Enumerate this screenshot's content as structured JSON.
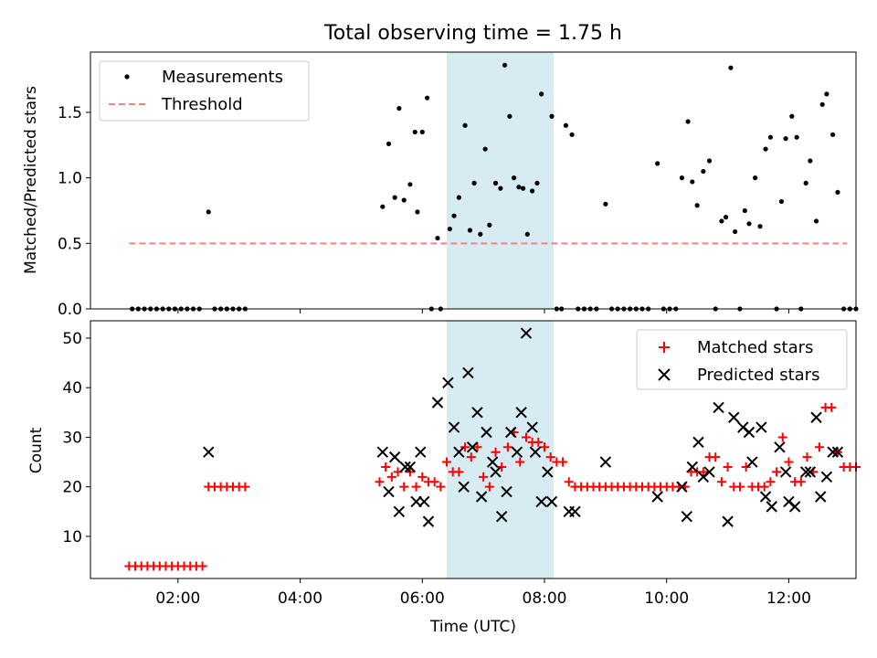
{
  "chart_data": [
    {
      "type": "scatter",
      "title": "Total observing time = 1.75 h",
      "xlabel": "",
      "ylabel": "Matched/Predicted stars",
      "x_unit": "hours UTC",
      "xlim": [
        "00:34",
        "13:06"
      ],
      "ylim": [
        0,
        1.96
      ],
      "yticks": [
        "0.0",
        "0.5",
        "1.0",
        "1.5"
      ],
      "highlight_band": {
        "from": "06:24",
        "to": "08:09"
      },
      "legend": {
        "location": "upper left",
        "entries": [
          "Measurements",
          "Threshold"
        ]
      },
      "series": [
        {
          "name": "Measurements",
          "marker": "dot",
          "color": "#000000",
          "points": [
            [
              1.25,
              0
            ],
            [
              1.35,
              0
            ],
            [
              1.45,
              0
            ],
            [
              1.55,
              0
            ],
            [
              1.65,
              0
            ],
            [
              1.75,
              0
            ],
            [
              1.85,
              0
            ],
            [
              1.95,
              0
            ],
            [
              2.05,
              0
            ],
            [
              2.15,
              0
            ],
            [
              2.25,
              0
            ],
            [
              2.35,
              0
            ],
            [
              2.5,
              0.74
            ],
            [
              2.6,
              0
            ],
            [
              2.7,
              0
            ],
            [
              2.8,
              0
            ],
            [
              2.9,
              0
            ],
            [
              3.0,
              0
            ],
            [
              3.1,
              0
            ],
            [
              5.35,
              0.78
            ],
            [
              5.45,
              1.26
            ],
            [
              5.55,
              0.85
            ],
            [
              5.62,
              1.53
            ],
            [
              5.7,
              0.83
            ],
            [
              5.8,
              0.95
            ],
            [
              5.88,
              1.35
            ],
            [
              5.92,
              0.74
            ],
            [
              6.0,
              1.35
            ],
            [
              6.08,
              1.61
            ],
            [
              6.15,
              0
            ],
            [
              6.25,
              0.54
            ],
            [
              6.3,
              0
            ],
            [
              6.45,
              0.61
            ],
            [
              6.52,
              0.71
            ],
            [
              6.6,
              0.85
            ],
            [
              6.7,
              1.4
            ],
            [
              6.78,
              0.6
            ],
            [
              6.85,
              0.96
            ],
            [
              6.95,
              0.57
            ],
            [
              7.03,
              1.22
            ],
            [
              7.1,
              0.64
            ],
            [
              7.2,
              0.96
            ],
            [
              7.28,
              0.92
            ],
            [
              7.35,
              1.86
            ],
            [
              7.43,
              1.47
            ],
            [
              7.5,
              1.0
            ],
            [
              7.58,
              0.93
            ],
            [
              7.65,
              0.92
            ],
            [
              7.72,
              0.57
            ],
            [
              7.8,
              0.9
            ],
            [
              7.88,
              0.96
            ],
            [
              7.95,
              1.64
            ],
            [
              8.12,
              1.47
            ],
            [
              8.2,
              0
            ],
            [
              8.28,
              0
            ],
            [
              8.35,
              1.4
            ],
            [
              8.45,
              1.33
            ],
            [
              8.55,
              0
            ],
            [
              8.65,
              0
            ],
            [
              8.75,
              0
            ],
            [
              8.85,
              0
            ],
            [
              9.0,
              0.8
            ],
            [
              9.1,
              0
            ],
            [
              9.2,
              0
            ],
            [
              9.3,
              0
            ],
            [
              9.4,
              0
            ],
            [
              9.5,
              0
            ],
            [
              9.6,
              0
            ],
            [
              9.7,
              0
            ],
            [
              9.85,
              1.11
            ],
            [
              9.95,
              0
            ],
            [
              10.05,
              0
            ],
            [
              10.15,
              0
            ],
            [
              10.25,
              1.0
            ],
            [
              10.35,
              1.43
            ],
            [
              10.42,
              0.97
            ],
            [
              10.5,
              0.79
            ],
            [
              10.6,
              1.05
            ],
            [
              10.7,
              1.13
            ],
            [
              10.8,
              0
            ],
            [
              10.9,
              0.67
            ],
            [
              10.97,
              0.7
            ],
            [
              11.05,
              1.84
            ],
            [
              11.12,
              0.59
            ],
            [
              11.2,
              0
            ],
            [
              11.28,
              0.75
            ],
            [
              11.35,
              0.65
            ],
            [
              11.45,
              1.0
            ],
            [
              11.53,
              0.63
            ],
            [
              11.62,
              1.22
            ],
            [
              11.7,
              1.31
            ],
            [
              11.8,
              0
            ],
            [
              11.88,
              0.82
            ],
            [
              11.95,
              1.3
            ],
            [
              12.05,
              1.47
            ],
            [
              12.13,
              1.31
            ],
            [
              12.2,
              0
            ],
            [
              12.28,
              0.96
            ],
            [
              12.35,
              1.13
            ],
            [
              12.45,
              0.67
            ],
            [
              12.55,
              1.56
            ],
            [
              12.62,
              1.64
            ],
            [
              12.72,
              1.33
            ],
            [
              12.8,
              0.89
            ],
            [
              12.9,
              0
            ],
            [
              13.0,
              0
            ],
            [
              13.1,
              0
            ]
          ]
        },
        {
          "name": "Threshold",
          "style": "dashed-line",
          "color": "#ff8080",
          "points": [
            [
              1.2,
              0.5
            ],
            [
              12.95,
              0.5
            ]
          ]
        }
      ]
    },
    {
      "type": "scatter",
      "title": "",
      "xlabel": "Time (UTC)",
      "ylabel": "Count",
      "x_unit": "hours UTC",
      "xlim": [
        "00:34",
        "13:06"
      ],
      "ylim": [
        1.5,
        53.5
      ],
      "xticks": [
        "02:00",
        "04:00",
        "06:00",
        "08:00",
        "10:00",
        "12:00"
      ],
      "yticks": [
        "10",
        "20",
        "30",
        "40",
        "50"
      ],
      "highlight_band": {
        "from": "06:24",
        "to": "08:09"
      },
      "legend": {
        "location": "upper right",
        "entries": [
          "Matched stars",
          "Predicted stars"
        ]
      },
      "series": [
        {
          "name": "Matched stars",
          "marker": "plus",
          "color": "#ff0000",
          "points": [
            [
              1.2,
              4
            ],
            [
              1.3,
              4
            ],
            [
              1.4,
              4
            ],
            [
              1.5,
              4
            ],
            [
              1.6,
              4
            ],
            [
              1.7,
              4
            ],
            [
              1.8,
              4
            ],
            [
              1.9,
              4
            ],
            [
              2.0,
              4
            ],
            [
              2.1,
              4
            ],
            [
              2.2,
              4
            ],
            [
              2.3,
              4
            ],
            [
              2.4,
              4
            ],
            [
              2.5,
              20
            ],
            [
              2.6,
              20
            ],
            [
              2.7,
              20
            ],
            [
              2.8,
              20
            ],
            [
              2.9,
              20
            ],
            [
              3.0,
              20
            ],
            [
              3.1,
              20
            ],
            [
              5.3,
              21
            ],
            [
              5.4,
              24
            ],
            [
              5.5,
              22
            ],
            [
              5.6,
              23
            ],
            [
              5.7,
              20
            ],
            [
              5.8,
              23
            ],
            [
              5.9,
              20
            ],
            [
              6.0,
              22
            ],
            [
              6.1,
              21
            ],
            [
              6.2,
              21
            ],
            [
              6.3,
              20
            ],
            [
              6.4,
              25
            ],
            [
              6.5,
              23
            ],
            [
              6.6,
              23
            ],
            [
              6.7,
              28
            ],
            [
              6.8,
              26
            ],
            [
              6.9,
              28
            ],
            [
              7.0,
              22
            ],
            [
              7.1,
              20
            ],
            [
              7.2,
              27
            ],
            [
              7.3,
              24
            ],
            [
              7.4,
              28
            ],
            [
              7.5,
              31
            ],
            [
              7.6,
              25
            ],
            [
              7.7,
              30
            ],
            [
              7.8,
              29
            ],
            [
              7.9,
              29
            ],
            [
              8.0,
              28
            ],
            [
              8.1,
              26
            ],
            [
              8.2,
              25
            ],
            [
              8.3,
              25
            ],
            [
              8.4,
              21
            ],
            [
              8.5,
              20
            ],
            [
              8.6,
              20
            ],
            [
              8.7,
              20
            ],
            [
              8.8,
              20
            ],
            [
              8.9,
              20
            ],
            [
              9.0,
              20
            ],
            [
              9.1,
              20
            ],
            [
              9.2,
              20
            ],
            [
              9.3,
              20
            ],
            [
              9.4,
              20
            ],
            [
              9.5,
              20
            ],
            [
              9.6,
              20
            ],
            [
              9.7,
              20
            ],
            [
              9.8,
              20
            ],
            [
              9.9,
              20
            ],
            [
              10.0,
              20
            ],
            [
              10.1,
              20
            ],
            [
              10.2,
              20
            ],
            [
              10.3,
              20
            ],
            [
              10.4,
              23
            ],
            [
              10.5,
              23
            ],
            [
              10.6,
              23
            ],
            [
              10.7,
              26
            ],
            [
              10.8,
              26
            ],
            [
              10.9,
              21
            ],
            [
              11.0,
              24
            ],
            [
              11.1,
              20
            ],
            [
              11.2,
              20
            ],
            [
              11.3,
              24
            ],
            [
              11.4,
              20
            ],
            [
              11.5,
              20
            ],
            [
              11.6,
              20
            ],
            [
              11.7,
              21
            ],
            [
              11.8,
              23
            ],
            [
              11.9,
              30
            ],
            [
              12.0,
              25
            ],
            [
              12.1,
              21
            ],
            [
              12.2,
              21
            ],
            [
              12.3,
              26
            ],
            [
              12.4,
              23
            ],
            [
              12.5,
              28
            ],
            [
              12.6,
              36
            ],
            [
              12.7,
              36
            ],
            [
              12.8,
              27
            ],
            [
              12.9,
              24
            ],
            [
              13.0,
              24
            ],
            [
              13.1,
              24
            ]
          ]
        },
        {
          "name": "Predicted stars",
          "marker": "x",
          "color": "#000000",
          "points": [
            [
              2.5,
              27
            ],
            [
              5.35,
              27
            ],
            [
              5.45,
              19
            ],
            [
              5.55,
              26
            ],
            [
              5.62,
              15
            ],
            [
              5.72,
              24
            ],
            [
              5.8,
              24
            ],
            [
              5.9,
              17
            ],
            [
              5.97,
              27
            ],
            [
              6.03,
              17
            ],
            [
              6.1,
              13
            ],
            [
              6.25,
              37
            ],
            [
              6.42,
              41
            ],
            [
              6.52,
              32
            ],
            [
              6.6,
              27
            ],
            [
              6.68,
              20
            ],
            [
              6.75,
              43
            ],
            [
              6.82,
              28
            ],
            [
              6.9,
              35
            ],
            [
              6.97,
              18
            ],
            [
              7.05,
              31
            ],
            [
              7.15,
              25
            ],
            [
              7.2,
              23
            ],
            [
              7.3,
              14
            ],
            [
              7.38,
              19
            ],
            [
              7.45,
              31
            ],
            [
              7.55,
              27
            ],
            [
              7.62,
              35
            ],
            [
              7.7,
              51
            ],
            [
              7.8,
              32
            ],
            [
              7.85,
              27
            ],
            [
              7.95,
              17
            ],
            [
              8.05,
              23
            ],
            [
              8.12,
              17
            ],
            [
              8.4,
              15
            ],
            [
              8.5,
              15
            ],
            [
              9.0,
              25
            ],
            [
              9.85,
              18
            ],
            [
              10.25,
              20
            ],
            [
              10.33,
              14
            ],
            [
              10.42,
              24
            ],
            [
              10.52,
              29
            ],
            [
              10.6,
              22
            ],
            [
              10.7,
              23
            ],
            [
              10.85,
              36
            ],
            [
              11.0,
              13
            ],
            [
              11.1,
              34
            ],
            [
              11.25,
              32
            ],
            [
              11.35,
              31
            ],
            [
              11.4,
              25
            ],
            [
              11.55,
              32
            ],
            [
              11.62,
              18
            ],
            [
              11.72,
              16
            ],
            [
              11.85,
              28
            ],
            [
              11.95,
              23
            ],
            [
              12.0,
              17
            ],
            [
              12.1,
              16
            ],
            [
              12.28,
              23
            ],
            [
              12.35,
              23
            ],
            [
              12.45,
              34
            ],
            [
              12.52,
              18
            ],
            [
              12.62,
              22
            ],
            [
              12.72,
              27
            ],
            [
              12.8,
              27
            ]
          ]
        }
      ]
    }
  ]
}
